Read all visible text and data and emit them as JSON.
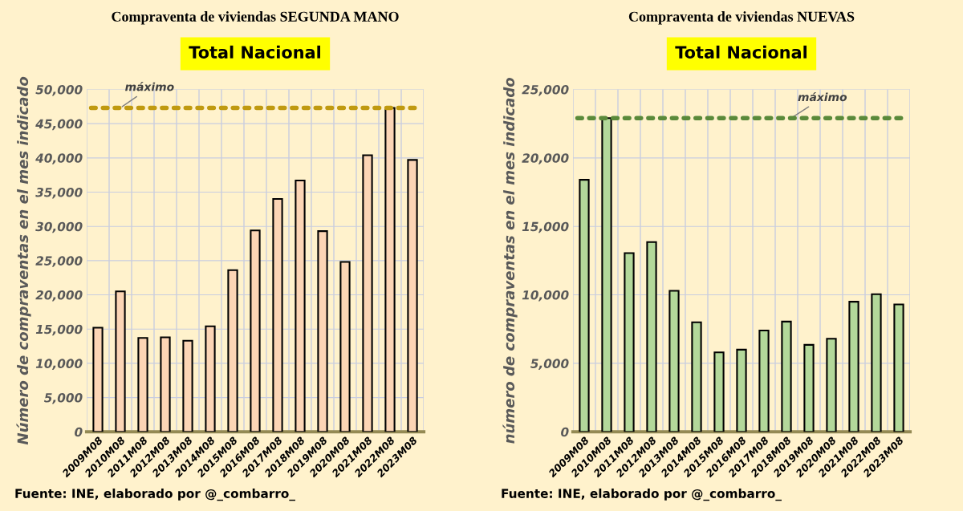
{
  "chart_data": [
    {
      "type": "bar",
      "title": "Compraventa de viviendas SEGUNDA MANO",
      "subtitle": "Total Nacional",
      "ylabel": "Número de compraventas en el mes indicado",
      "categories": [
        "2009M08",
        "2010M08",
        "2011M08",
        "2012M08",
        "2013M08",
        "2014M08",
        "2015M08",
        "2016M08",
        "2017M08",
        "2018M08",
        "2019M08",
        "2020M08",
        "2021M08",
        "2022M08",
        "2023M08"
      ],
      "values": [
        15200,
        20500,
        13700,
        13800,
        13300,
        15400,
        23600,
        29400,
        34000,
        36700,
        29300,
        24800,
        40400,
        47300,
        39700
      ],
      "color": "#fcd5b5",
      "ylim": [
        0,
        50000
      ],
      "yticks": [
        {
          "value": 0,
          "label": "0"
        },
        {
          "value": 5000,
          "label": "5,000"
        },
        {
          "value": 10000,
          "label": "10,000"
        },
        {
          "value": 15000,
          "label": "15,000"
        },
        {
          "value": 20000,
          "label": "20,000"
        },
        {
          "value": 25000,
          "label": "25,000"
        },
        {
          "value": 30000,
          "label": "30,000"
        },
        {
          "value": 35000,
          "label": "35,000"
        },
        {
          "value": 40000,
          "label": "40,000"
        },
        {
          "value": 45000,
          "label": "45,000"
        },
        {
          "value": 50000,
          "label": "50,000"
        }
      ],
      "grid": true,
      "ref_lines": [
        {
          "axis": "y",
          "value": 47300,
          "label": "máximo",
          "color": "#c09a10",
          "line_style": "dotted"
        }
      ],
      "annotations": [
        "Fuente: INE, elaborado por @_combarro_"
      ]
    },
    {
      "type": "bar",
      "title": "Compraventa de viviendas NUEVAS",
      "subtitle": "Total Nacional",
      "ylabel": "número de compraventas en el mes indicado",
      "categories": [
        "2009M08",
        "2010M08",
        "2011M08",
        "2012M08",
        "2013M08",
        "2014M08",
        "2015M08",
        "2016M08",
        "2017M08",
        "2018M08",
        "2019M08",
        "2020M08",
        "2021M08",
        "2022M08",
        "2023M08"
      ],
      "values": [
        18400,
        22900,
        13050,
        13850,
        10300,
        8000,
        5800,
        6000,
        7400,
        8050,
        6350,
        6800,
        9500,
        10050,
        9300
      ],
      "color": "#b3d89a",
      "ylim": [
        0,
        25000
      ],
      "yticks": [
        {
          "value": 0,
          "label": "0"
        },
        {
          "value": 5000,
          "label": "5,000"
        },
        {
          "value": 10000,
          "label": "10,000"
        },
        {
          "value": 15000,
          "label": "15,000"
        },
        {
          "value": 20000,
          "label": "20,000"
        },
        {
          "value": 25000,
          "label": "25,000"
        }
      ],
      "grid": true,
      "ref_lines": [
        {
          "axis": "y",
          "value": 22900,
          "label": "máximo",
          "color": "#5a8a3a",
          "line_style": "dotted"
        }
      ],
      "annotations": [
        "Fuente: INE, elaborado por @_combarro_"
      ]
    }
  ]
}
